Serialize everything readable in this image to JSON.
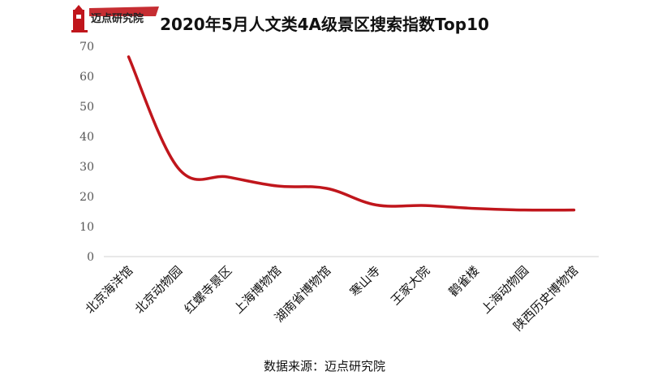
{
  "brand": {
    "logo_name": "迈点研究院",
    "logo_icon": "lighthouse-icon",
    "accent_color": "#c0161c"
  },
  "source_text": "数据来源：迈点研究院",
  "chart_data": {
    "type": "line",
    "title": "2020年5月人文类4A级景区搜索指数Top10",
    "xlabel": "",
    "ylabel": "",
    "categories": [
      "北京海洋馆",
      "北京动物园",
      "红螺寺景区",
      "上海博物馆",
      "湖南省博物馆",
      "寒山寺",
      "王家大院",
      "鹳雀楼",
      "上海动物园",
      "陕西历史博物馆"
    ],
    "series": [
      {
        "values": [
          66.5,
          29.5,
          26.5,
          23.5,
          22.7,
          17.2,
          17.0,
          16.0,
          15.5,
          15.5
        ],
        "color": "#c0161c",
        "smooth": true
      }
    ],
    "ylim": [
      0,
      70
    ],
    "yticks": [
      0,
      10,
      20,
      30,
      40,
      50,
      60,
      70
    ],
    "grid": false,
    "legend": "none"
  }
}
